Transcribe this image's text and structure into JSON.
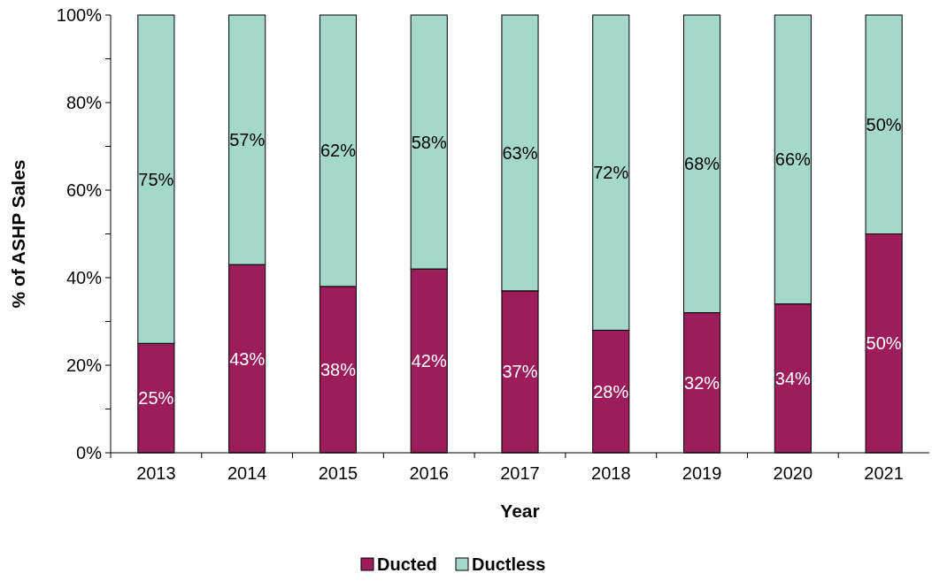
{
  "chart_data": {
    "type": "bar",
    "stacked": true,
    "xlabel": "Year",
    "ylabel": "% of ASHP Sales",
    "categories": [
      "2013",
      "2014",
      "2015",
      "2016",
      "2017",
      "2018",
      "2019",
      "2020",
      "2021"
    ],
    "series": [
      {
        "name": "Ducted",
        "color": "#9c1c5c",
        "values": [
          25,
          43,
          38,
          42,
          37,
          28,
          32,
          34,
          50
        ],
        "value_labels": [
          "25%",
          "43%",
          "38%",
          "42%",
          "37%",
          "28%",
          "32%",
          "34%",
          "50%"
        ]
      },
      {
        "name": "Ductless",
        "color": "#a3d8cb",
        "values": [
          75,
          57,
          62,
          58,
          63,
          72,
          68,
          66,
          50
        ],
        "value_labels": [
          "75%",
          "57%",
          "62%",
          "58%",
          "63%",
          "72%",
          "68%",
          "66%",
          "50%"
        ]
      }
    ],
    "ylim": [
      0,
      100
    ],
    "yticks": [
      {
        "value": 0,
        "label": "0%"
      },
      {
        "value": 10,
        "label": null
      },
      {
        "value": 20,
        "label": "20%"
      },
      {
        "value": 30,
        "label": null
      },
      {
        "value": 40,
        "label": "40%"
      },
      {
        "value": 50,
        "label": null
      },
      {
        "value": 60,
        "label": "60%"
      },
      {
        "value": 70,
        "label": null
      },
      {
        "value": 80,
        "label": "80%"
      },
      {
        "value": 90,
        "label": null
      },
      {
        "value": 100,
        "label": "100%"
      }
    ],
    "grid": false,
    "legend": "bottom"
  }
}
